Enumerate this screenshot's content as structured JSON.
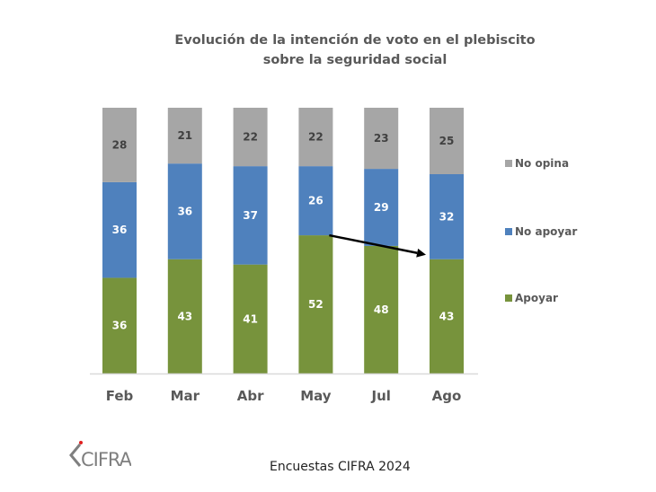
{
  "chart_data": {
    "type": "bar",
    "stacked": true,
    "title": "Evolución de la intención de voto en el plebiscito sobre la seguridad social",
    "title_lines": [
      "Evolución de la intención de voto en el plebiscito",
      "sobre la seguridad social"
    ],
    "xlabel": "",
    "ylabel": "",
    "ylim": [
      0,
      100
    ],
    "grid": false,
    "categories": [
      "Feb",
      "Mar",
      "Abr",
      "May",
      "Jul",
      "Ago"
    ],
    "series": [
      {
        "name": "Apoyar",
        "color": "#77933C",
        "label_color": "#ffffff",
        "values": [
          36,
          43,
          41,
          52,
          48,
          43
        ]
      },
      {
        "name": "No apoyar",
        "color": "#4F81BD",
        "label_color": "#ffffff",
        "values": [
          36,
          36,
          37,
          26,
          29,
          32
        ]
      },
      {
        "name": "No opina",
        "color": "#A6A6A6",
        "label_color": "#404040",
        "values": [
          28,
          21,
          22,
          22,
          23,
          25
        ]
      }
    ],
    "legend": {
      "placement": "right",
      "order": [
        "No opina",
        "No apoyar",
        "Apoyar"
      ]
    },
    "annotations": [
      {
        "type": "arrow",
        "description": "Arrow from top of May 'Apoyar' bar to top of Ago 'Apoyar' bar",
        "from_category": "May",
        "to_category": "Ago",
        "series": "Apoyar"
      }
    ]
  },
  "footer": {
    "logo_text": "CIFRA",
    "source": "Encuestas CIFRA 2024"
  }
}
